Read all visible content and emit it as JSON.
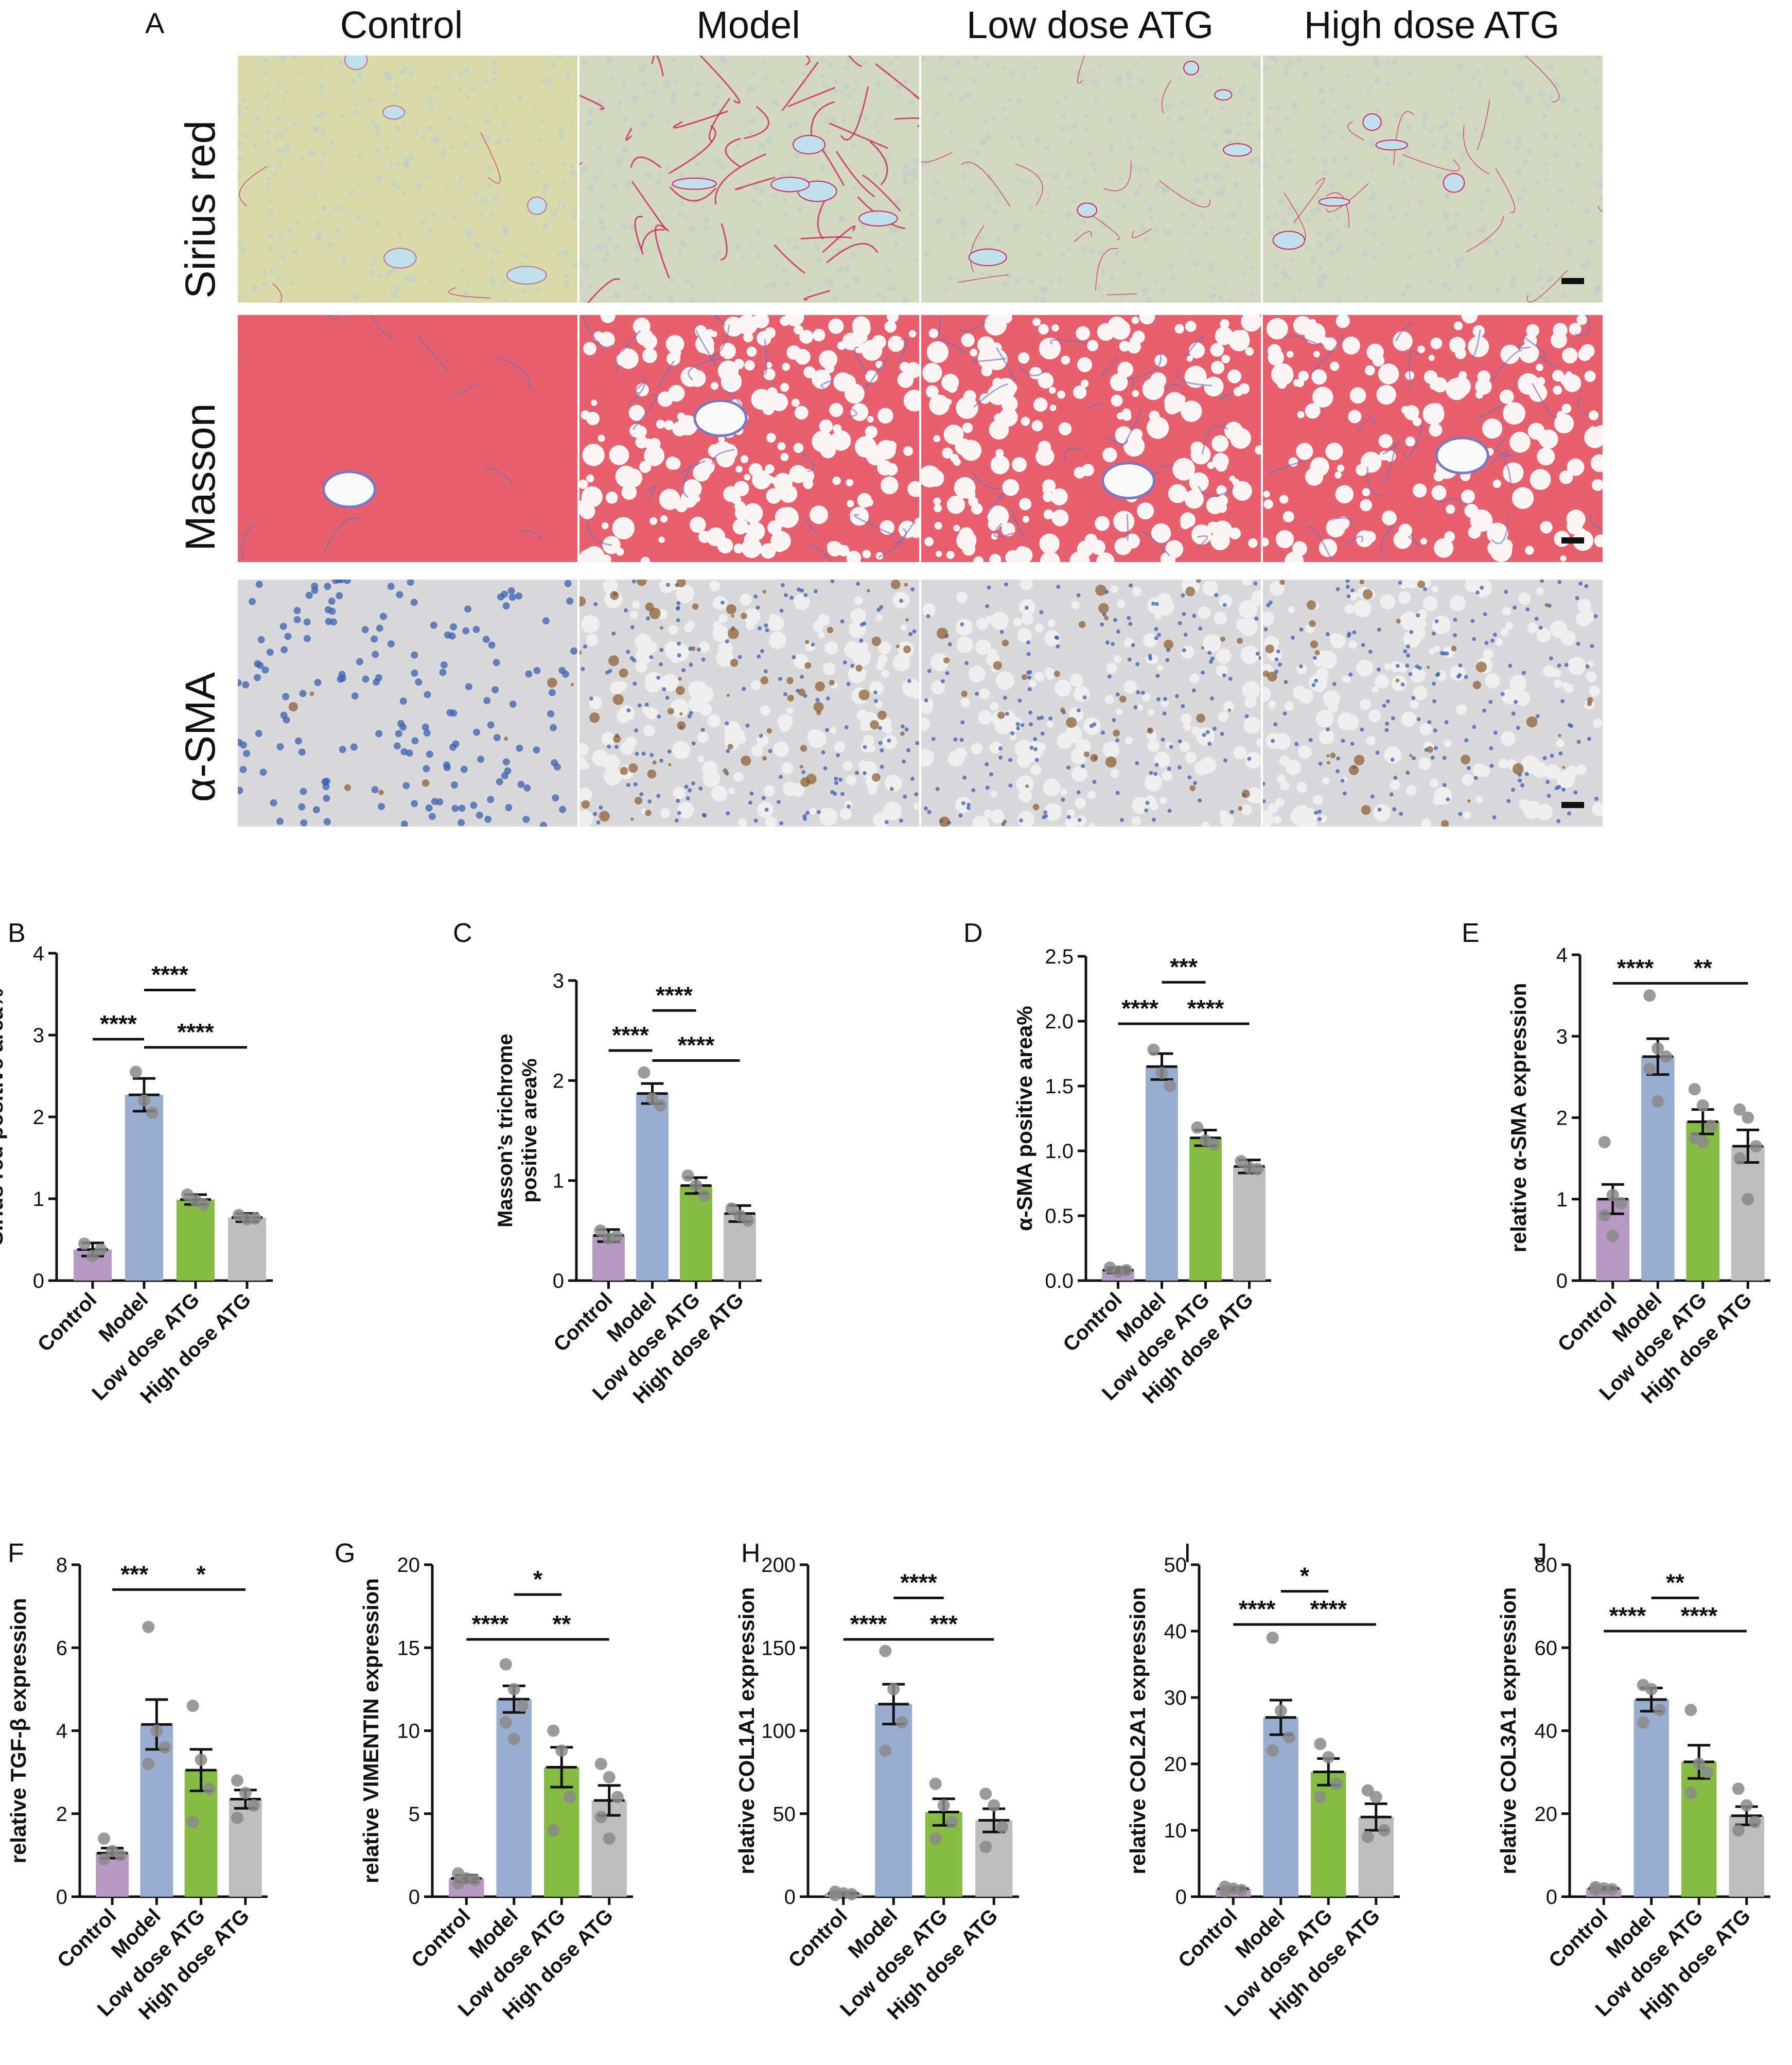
{
  "figure": {
    "panel_a": {
      "letter": "A",
      "columns": [
        "Control",
        "Model",
        "Low dose ATG",
        "High dose ATG"
      ],
      "rows": [
        "Sirius red",
        "Masson",
        "α-SMA"
      ]
    },
    "colors": {
      "control": "#b79ac4",
      "model": "#98add0",
      "low_dose": "#86bb44",
      "high_dose": "#bdbdbd",
      "dot": "#8a8a8a",
      "sirius_bg": "#dcdcb0",
      "masson_bg": "#e8606e",
      "sma_bg": "#d9d8db"
    }
  },
  "chart_data": [
    {
      "panel": "B",
      "type": "bar",
      "categories": [
        "Control",
        "Model",
        "Low dose ATG",
        "High dose ATG"
      ],
      "values": [
        0.38,
        2.27,
        0.99,
        0.77
      ],
      "errors": [
        0.08,
        0.2,
        0.06,
        0.05
      ],
      "points": [
        [
          0.45,
          0.3,
          0.38
        ],
        [
          2.55,
          2.2,
          2.05
        ],
        [
          1.05,
          0.98,
          0.93
        ],
        [
          0.8,
          0.75,
          0.76
        ]
      ],
      "xlabel": "",
      "ylabel": "Sirius red positive area%",
      "ylim": [
        0,
        4
      ],
      "yticks": [
        0,
        1,
        2,
        3,
        4
      ],
      "yticklabels": [
        "0",
        "1",
        "2",
        "3",
        "4"
      ],
      "comparisons": [
        {
          "from": 0,
          "to": 1,
          "label": "****",
          "y": 2.95
        },
        {
          "from": 1,
          "to": 2,
          "label": "****",
          "y": 3.55
        },
        {
          "from": 1,
          "to": 3,
          "label": "****",
          "y": 2.85
        }
      ]
    },
    {
      "panel": "C",
      "type": "bar",
      "categories": [
        "Control",
        "Model",
        "Low dose ATG",
        "High dose ATG"
      ],
      "values": [
        0.45,
        1.87,
        0.95,
        0.67
      ],
      "errors": [
        0.06,
        0.1,
        0.08,
        0.08
      ],
      "points": [
        [
          0.5,
          0.42,
          0.44
        ],
        [
          2.08,
          1.82,
          1.75
        ],
        [
          1.05,
          0.95,
          0.85
        ],
        [
          0.72,
          0.65,
          0.6
        ]
      ],
      "xlabel": "",
      "ylabel": "Masson’s trichrome positive area%",
      "ylim": [
        0,
        3
      ],
      "yticks": [
        0,
        1,
        2,
        3
      ],
      "yticklabels": [
        "0",
        "1",
        "2",
        "3"
      ],
      "comparisons": [
        {
          "from": 0,
          "to": 1,
          "label": "****",
          "y": 2.3
        },
        {
          "from": 1,
          "to": 2,
          "label": "****",
          "y": 2.7
        },
        {
          "from": 1,
          "to": 3,
          "label": "****",
          "y": 2.2
        }
      ]
    },
    {
      "panel": "D",
      "type": "bar",
      "categories": [
        "Control",
        "Model",
        "Low dose ATG",
        "High dose ATG"
      ],
      "values": [
        0.08,
        1.65,
        1.1,
        0.88
      ],
      "errors": [
        0.02,
        0.1,
        0.06,
        0.05
      ],
      "points": [
        [
          0.1,
          0.07,
          0.08
        ],
        [
          1.78,
          1.6,
          1.5
        ],
        [
          1.18,
          1.08,
          1.05
        ],
        [
          0.92,
          0.87,
          0.86
        ]
      ],
      "xlabel": "",
      "ylabel": "α-SMA positive area%",
      "ylim": [
        0,
        2.5
      ],
      "yticks": [
        0,
        0.5,
        1,
        1.5,
        2,
        2.5
      ],
      "yticklabels": [
        "0.0",
        "0.5",
        "1.0",
        "1.5",
        "2.0",
        "2.5"
      ],
      "comparisons": [
        {
          "from": 0,
          "to": 1,
          "label": "****",
          "y": 1.98
        },
        {
          "from": 1,
          "to": 2,
          "label": "***",
          "y": 2.3
        },
        {
          "from": 1,
          "to": 3,
          "label": "****",
          "y": 1.98
        }
      ]
    },
    {
      "panel": "E",
      "type": "bar",
      "categories": [
        "Control",
        "Model",
        "Low dose ATG",
        "High dose ATG"
      ],
      "values": [
        1.0,
        2.75,
        1.95,
        1.65
      ],
      "errors": [
        0.18,
        0.22,
        0.15,
        0.2
      ],
      "points": [
        [
          1.7,
          1.05,
          0.95,
          0.8,
          0.55
        ],
        [
          3.5,
          2.85,
          2.75,
          2.6,
          2.2
        ],
        [
          2.35,
          2.15,
          1.9,
          1.75,
          1.7
        ],
        [
          2.1,
          2.0,
          1.65,
          1.5,
          1.0
        ]
      ],
      "xlabel": "",
      "ylabel": "relative α-SMA expression",
      "ylim": [
        0,
        4
      ],
      "yticks": [
        0,
        1,
        2,
        3,
        4
      ],
      "yticklabels": [
        "0",
        "1",
        "2",
        "3",
        "4"
      ],
      "comparisons": [
        {
          "from": 0,
          "to": 1,
          "label": "****",
          "y": 3.65
        },
        {
          "from": 1,
          "to": 3,
          "label": "**",
          "y": 3.65
        }
      ]
    },
    {
      "panel": "F",
      "type": "bar",
      "categories": [
        "Control",
        "Model",
        "Low dose ATG",
        "High dose ATG"
      ],
      "values": [
        1.05,
        4.15,
        3.05,
        2.35
      ],
      "errors": [
        0.12,
        0.6,
        0.5,
        0.22
      ],
      "points": [
        [
          1.4,
          1.1,
          1.0,
          0.9
        ],
        [
          6.5,
          4.0,
          3.6,
          3.2
        ],
        [
          4.6,
          3.3,
          2.6,
          1.8
        ],
        [
          2.8,
          2.5,
          2.2,
          1.9
        ]
      ],
      "xlabel": "",
      "ylabel": "relative TGF-β expression",
      "ylim": [
        0,
        8
      ],
      "yticks": [
        0,
        2,
        4,
        6,
        8
      ],
      "yticklabels": [
        "0",
        "2",
        "4",
        "6",
        "8"
      ],
      "comparisons": [
        {
          "from": 0,
          "to": 1,
          "label": "***",
          "y": 7.4
        },
        {
          "from": 1,
          "to": 3,
          "label": "*",
          "y": 7.4
        }
      ]
    },
    {
      "panel": "G",
      "type": "bar",
      "categories": [
        "Control",
        "Model",
        "Low dose ATG",
        "High dose ATG"
      ],
      "values": [
        1.1,
        11.9,
        7.8,
        5.8
      ],
      "errors": [
        0.2,
        0.8,
        1.2,
        0.9
      ],
      "points": [
        [
          1.4,
          1.1,
          1.0,
          0.8
        ],
        [
          14.0,
          12.5,
          11.5,
          10.5,
          9.5
        ],
        [
          10.0,
          8.8,
          6.0,
          4.0
        ],
        [
          8.0,
          7.2,
          6.0,
          4.8,
          3.5
        ]
      ],
      "xlabel": "",
      "ylabel": "relative VIMENTIN expression",
      "ylim": [
        0,
        20
      ],
      "yticks": [
        0,
        5,
        10,
        15,
        20
      ],
      "yticklabels": [
        "0",
        "5",
        "10",
        "15",
        "20"
      ],
      "comparisons": [
        {
          "from": 0,
          "to": 1,
          "label": "****",
          "y": 15.5
        },
        {
          "from": 1,
          "to": 2,
          "label": "*",
          "y": 18.2
        },
        {
          "from": 1,
          "to": 3,
          "label": "**",
          "y": 15.5
        }
      ]
    },
    {
      "panel": "H",
      "type": "bar",
      "categories": [
        "Control",
        "Model",
        "Low dose ATG",
        "High dose ATG"
      ],
      "values": [
        2,
        116,
        51,
        46
      ],
      "errors": [
        0.5,
        12,
        8,
        7
      ],
      "points": [
        [
          3,
          2,
          1.5,
          1
        ],
        [
          148,
          125,
          105,
          88
        ],
        [
          68,
          55,
          45,
          35
        ],
        [
          62,
          55,
          42,
          30
        ]
      ],
      "xlabel": "",
      "ylabel": "relative COL1A1 expression",
      "ylim": [
        0,
        200
      ],
      "yticks": [
        0,
        50,
        100,
        150,
        200
      ],
      "yticklabels": [
        "0",
        "50",
        "100",
        "150",
        "200"
      ],
      "comparisons": [
        {
          "from": 0,
          "to": 1,
          "label": "****",
          "y": 155
        },
        {
          "from": 1,
          "to": 2,
          "label": "****",
          "y": 180
        },
        {
          "from": 1,
          "to": 3,
          "label": "***",
          "y": 155
        }
      ]
    },
    {
      "panel": "I",
      "type": "bar",
      "categories": [
        "Control",
        "Model",
        "Low dose ATG",
        "High dose ATG"
      ],
      "values": [
        1.2,
        27,
        18.8,
        12
      ],
      "errors": [
        0.2,
        2.6,
        2.0,
        2.0
      ],
      "points": [
        [
          1.5,
          1.2,
          1.0,
          0.8
        ],
        [
          39,
          28,
          24,
          22
        ],
        [
          23,
          21,
          17,
          15
        ],
        [
          16,
          15,
          10,
          9
        ]
      ],
      "xlabel": "",
      "ylabel": "relative COL2A1 expression",
      "ylim": [
        0,
        50
      ],
      "yticks": [
        0,
        10,
        20,
        30,
        40,
        50
      ],
      "yticklabels": [
        "0",
        "10",
        "20",
        "30",
        "40",
        "50"
      ],
      "comparisons": [
        {
          "from": 0,
          "to": 1,
          "label": "****",
          "y": 41
        },
        {
          "from": 1,
          "to": 2,
          "label": "*",
          "y": 46
        },
        {
          "from": 1,
          "to": 3,
          "label": "****",
          "y": 41
        }
      ]
    },
    {
      "panel": "J",
      "type": "bar",
      "categories": [
        "Control",
        "Model",
        "Low dose ATG",
        "High dose ATG"
      ],
      "values": [
        2,
        47.5,
        32.5,
        19.5
      ],
      "errors": [
        0.3,
        2.8,
        4.0,
        2.2
      ],
      "points": [
        [
          2.3,
          2.0,
          1.8,
          1.7
        ],
        [
          51,
          50,
          45,
          42
        ],
        [
          45,
          32,
          30,
          25
        ],
        [
          26,
          22,
          18,
          16
        ]
      ],
      "xlabel": "",
      "ylabel": "relative COL3A1 expression",
      "ylim": [
        0,
        80
      ],
      "yticks": [
        0,
        20,
        40,
        60,
        80
      ],
      "yticklabels": [
        "0",
        "20",
        "40",
        "60",
        "80"
      ],
      "comparisons": [
        {
          "from": 0,
          "to": 1,
          "label": "****",
          "y": 64
        },
        {
          "from": 1,
          "to": 2,
          "label": "**",
          "y": 72
        },
        {
          "from": 1,
          "to": 3,
          "label": "****",
          "y": 64
        }
      ]
    }
  ]
}
